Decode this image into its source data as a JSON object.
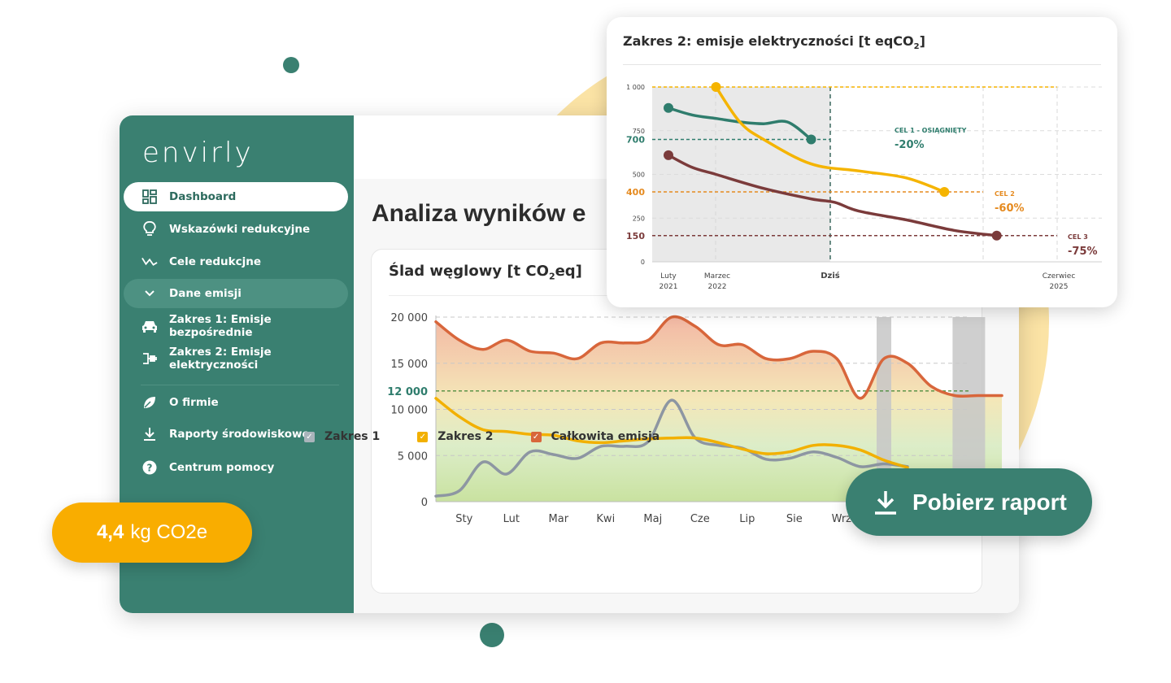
{
  "app": {
    "logo": "envirly"
  },
  "sidebar": {
    "items": [
      {
        "label": "Dashboard",
        "icon": "dashboard-icon",
        "active": true
      },
      {
        "label": "Wskazówki redukcyjne",
        "icon": "lightbulb-icon"
      },
      {
        "label": "Cele redukcjne",
        "icon": "trend-icon"
      },
      {
        "label": "Dane emisji",
        "icon": "chevron-down-icon",
        "expanded": true
      },
      {
        "label": "Zakres 1: Emisje bezpośrednie",
        "icon": "car-icon"
      },
      {
        "label": "Zakres 2: Emisje elektryczności",
        "icon": "plug-icon"
      },
      {
        "label": "O firmie",
        "icon": "leaf-icon"
      },
      {
        "label": "Raporty środowiskowe",
        "icon": "download-icon"
      },
      {
        "label": "Centrum pomocy",
        "icon": "help-icon"
      }
    ]
  },
  "main": {
    "title": "Analiza wyników e",
    "card_title_pre": "Ślad węglowy [t CO",
    "card_title_sub": "2",
    "card_title_post": "eq]"
  },
  "legend": [
    {
      "label": "Zakres 1",
      "color": "#a9b4bb"
    },
    {
      "label": "Zakres 2",
      "color": "#f2b000"
    },
    {
      "label": "Całkowita emisja",
      "color": "#d8663b"
    }
  ],
  "float_card": {
    "title_pre": "Zakres 2: emisje elektryczności [t eqCO",
    "title_sub": "2",
    "title_post": "]"
  },
  "download_button": {
    "label": "Pobierz raport"
  },
  "badge": {
    "value": "4,4",
    "unit": "kg CO2e"
  },
  "colors": {
    "brand_green": "#3a8071",
    "accent_yellow": "#f9ad00",
    "total_red": "#d8663b",
    "scope1_gray": "#8d96a2",
    "scope2_yellow": "#f2b000",
    "maroon": "#7b3b3b"
  },
  "chart_data": [
    {
      "type": "area",
      "title": "Ślad węglowy [t CO2eq]",
      "categories": [
        "Sty",
        "Lut",
        "Mar",
        "Kwi",
        "Maj",
        "Cze",
        "Lip",
        "Sie",
        "Wrz"
      ],
      "y_ticks": [
        "20 000",
        "15 000",
        "10 000",
        "5 000",
        "0"
      ],
      "ylim": [
        0,
        20000
      ],
      "threshold": {
        "value": 12000,
        "label": "12 000"
      },
      "series": [
        {
          "name": "Całkowita emisja",
          "color": "#d8663b",
          "x": [
            0,
            0.5,
            1,
            1.5,
            2,
            2.5,
            3,
            3.5,
            4,
            4.5,
            5,
            5.5,
            6,
            6.5,
            7,
            7.5,
            8,
            8.5,
            9,
            9.5,
            10,
            10.5,
            11,
            11.5,
            12
          ],
          "values": [
            19500,
            17500,
            16500,
            17500,
            16300,
            16100,
            15500,
            17200,
            17200,
            17500,
            20000,
            19000,
            17000,
            17000,
            15500,
            15500,
            16300,
            15500,
            11200,
            15500,
            15000,
            12500,
            11500,
            11500,
            11500
          ]
        },
        {
          "name": "Zakres 2",
          "color": "#f2b000",
          "x": [
            0,
            0.5,
            1,
            1.5,
            2,
            2.5,
            3,
            3.5,
            4,
            4.5,
            5,
            5.5,
            6,
            6.5,
            7,
            7.5,
            8,
            8.5,
            9,
            9.5,
            10
          ],
          "values": [
            11200,
            9200,
            7800,
            7600,
            7300,
            7200,
            6600,
            6400,
            6600,
            6800,
            6900,
            6900,
            6400,
            5700,
            5200,
            5400,
            6100,
            6100,
            5600,
            4500,
            3700
          ]
        },
        {
          "name": "Zakres 1",
          "color": "#8d96a2",
          "x": [
            0,
            0.5,
            1,
            1.5,
            2,
            2.5,
            3,
            3.5,
            4,
            4.5,
            5,
            5.5,
            6,
            6.5,
            7,
            7.5,
            8,
            8.5,
            9,
            9.5,
            10
          ],
          "values": [
            600,
            1200,
            4300,
            3000,
            5400,
            5100,
            4700,
            6000,
            6000,
            6500,
            11000,
            6900,
            6100,
            5800,
            4600,
            4700,
            5400,
            4800,
            3800,
            4100,
            3800
          ]
        }
      ],
      "shaded_columns": [
        9.5,
        11.3
      ]
    },
    {
      "type": "line",
      "title": "Zakres 2: emisje elektryczności [t eqCO2]",
      "x_labels": [
        {
          "label": "Luty",
          "label2": "2021"
        },
        {
          "label": "Marzec",
          "label2": "2022"
        },
        {
          "label": "Dziś",
          "label2": ""
        },
        {
          "label": "Czerwiec",
          "label2": "2025"
        }
      ],
      "y_ticks": [
        "1 000",
        "750",
        "500",
        "250",
        "0"
      ],
      "y_highlight": [
        {
          "value": 700,
          "label": "700",
          "color": "#2f7d6d"
        },
        {
          "value": 400,
          "label": "400",
          "color": "#e58a1f"
        },
        {
          "value": 150,
          "label": "150",
          "color": "#7b3b3b"
        }
      ],
      "ylim": [
        0,
        1000
      ],
      "series": [
        {
          "name": "green",
          "color": "#2f7d6d",
          "points": [
            [
              0,
              880
            ],
            [
              0.5,
              840
            ],
            [
              1,
              820
            ],
            [
              1.5,
              800
            ],
            [
              2,
              790
            ],
            [
              2.5,
              800
            ],
            [
              3,
              700
            ]
          ]
        },
        {
          "name": "yellow",
          "color": "#f5b400",
          "points": [
            [
              1,
              1000
            ],
            [
              1.5,
              800
            ],
            [
              2,
              700
            ],
            [
              3,
              560
            ],
            [
              4,
              520
            ],
            [
              5,
              480
            ],
            [
              5.8,
              400
            ]
          ]
        },
        {
          "name": "maroon",
          "color": "#7b3b3b",
          "points": [
            [
              0,
              610
            ],
            [
              0.5,
              540
            ],
            [
              1,
              500
            ],
            [
              2,
              420
            ],
            [
              3,
              360
            ],
            [
              3.5,
              340
            ],
            [
              4,
              290
            ],
            [
              5,
              240
            ],
            [
              6,
              180
            ],
            [
              6.9,
              150
            ]
          ]
        }
      ],
      "goals": [
        {
          "name": "CEL 1 - OSIĄGNIĘTY",
          "pct": "-20%",
          "color": "#2f7d6d"
        },
        {
          "name": "CEL 2",
          "pct": "-60%",
          "color": "#e58a1f"
        },
        {
          "name": "CEL 3",
          "pct": "-75%",
          "color": "#7b3b3b"
        }
      ]
    }
  ]
}
